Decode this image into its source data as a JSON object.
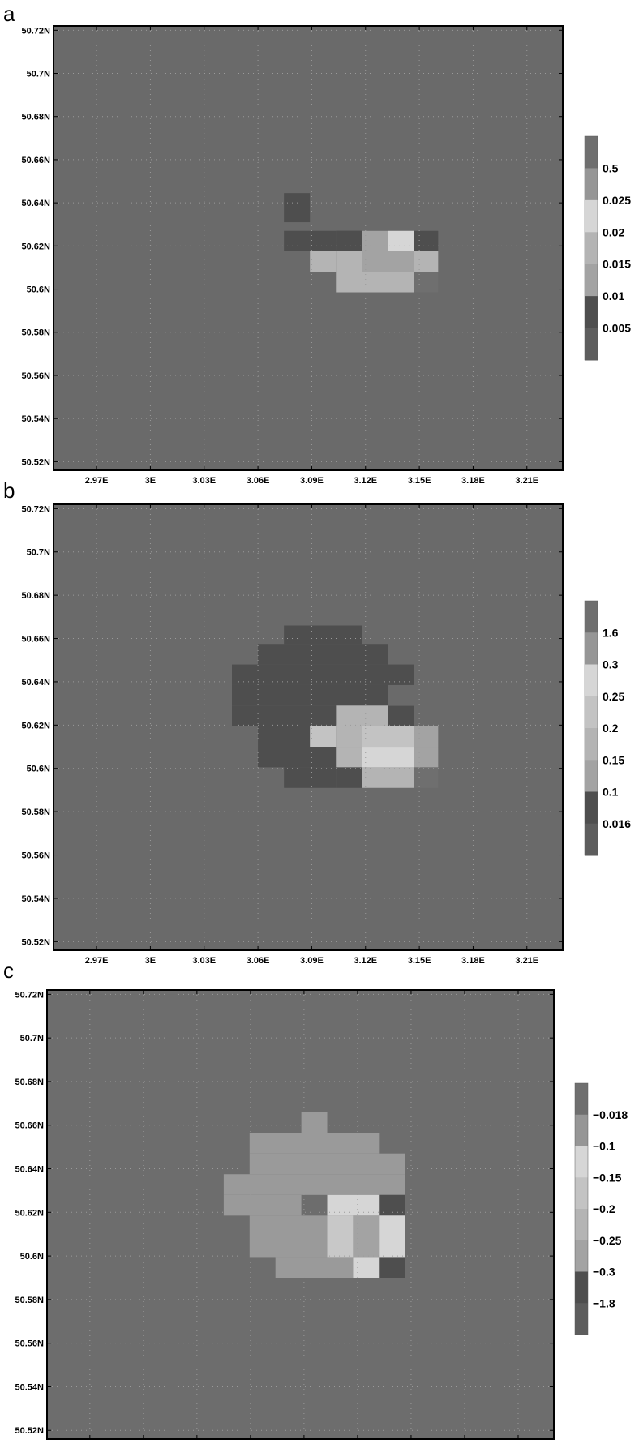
{
  "chart_data": [
    {
      "type": "heatmap",
      "panel_label": "a",
      "x_ticks": [
        "2.97E",
        "3E",
        "3.03E",
        "3.06E",
        "3.09E",
        "3.12E",
        "3.15E",
        "3.18E",
        "3.21E"
      ],
      "y_ticks": [
        "50.72N",
        "50.7N",
        "50.68N",
        "50.66N",
        "50.64N",
        "50.62N",
        "50.6N",
        "50.58N",
        "50.56N",
        "50.54N",
        "50.52N"
      ],
      "x_values": [
        2.97,
        3.0,
        3.03,
        3.06,
        3.09,
        3.12,
        3.15,
        3.18,
        3.21
      ],
      "y_values": [
        50.72,
        50.7,
        50.68,
        50.66,
        50.64,
        50.62,
        50.6,
        50.58,
        50.56,
        50.54,
        50.52
      ],
      "xlim": [
        2.946,
        3.23
      ],
      "ylim": [
        50.516,
        50.722
      ],
      "grid": true,
      "background_color": "#6a6a6a",
      "colorbar_labels": [
        "0.5",
        "0.025",
        "0.02",
        "0.015",
        "0.01",
        "0.005"
      ],
      "colorbar_colors": [
        "#6f6f6f",
        "#969696",
        "#d6d6d6",
        "#b4b4b4",
        "#a3a3a3",
        "#4e4e4e",
        "#5d5d5d"
      ],
      "cells": [
        {
          "x": 3.0745,
          "y": 50.631,
          "w": 0.0145,
          "h": 0.0135,
          "color": "#4e4e4e"
        },
        {
          "x": 3.0745,
          "y": 50.6175,
          "w": 0.0145,
          "h": 0.0095,
          "color": "#4e4e4e"
        },
        {
          "x": 3.089,
          "y": 50.6175,
          "w": 0.0145,
          "h": 0.0095,
          "color": "#4e4e4e"
        },
        {
          "x": 3.1035,
          "y": 50.6215,
          "w": 0.0435,
          "h": 0.0055,
          "color": "#4e4e4e"
        },
        {
          "x": 3.1035,
          "y": 50.6175,
          "w": 0.0145,
          "h": 0.004,
          "color": "#4e4e4e"
        },
        {
          "x": 3.118,
          "y": 50.6175,
          "w": 0.0145,
          "h": 0.004,
          "color": "#a3a3a3"
        },
        {
          "x": 3.1325,
          "y": 50.6175,
          "w": 0.0145,
          "h": 0.004,
          "color": "#d6d6d6"
        },
        {
          "x": 3.1035,
          "y": 50.6175,
          "w": 0.0145,
          "h": 0.0095,
          "color": "#4e4e4e"
        },
        {
          "x": 3.118,
          "y": 50.6175,
          "w": 0.0145,
          "h": 0.0095,
          "color": "#a3a3a3"
        },
        {
          "x": 3.1325,
          "y": 50.6175,
          "w": 0.0145,
          "h": 0.0095,
          "color": "#d6d6d6"
        },
        {
          "x": 3.147,
          "y": 50.6175,
          "w": 0.0135,
          "h": 0.0095,
          "color": "#4e4e4e"
        },
        {
          "x": 3.089,
          "y": 50.608,
          "w": 0.0145,
          "h": 0.0095,
          "color": "#b4b4b4"
        },
        {
          "x": 3.1035,
          "y": 50.608,
          "w": 0.0145,
          "h": 0.0095,
          "color": "#b4b4b4"
        },
        {
          "x": 3.118,
          "y": 50.608,
          "w": 0.029,
          "h": 0.0095,
          "color": "#a3a3a3"
        },
        {
          "x": 3.147,
          "y": 50.608,
          "w": 0.0135,
          "h": 0.0095,
          "color": "#b4b4b4"
        },
        {
          "x": 3.1035,
          "y": 50.5985,
          "w": 0.0435,
          "h": 0.0095,
          "color": "#b4b4b4"
        },
        {
          "x": 3.147,
          "y": 50.5985,
          "w": 0.0135,
          "h": 0.0095,
          "color": "#6f6f6f"
        }
      ]
    },
    {
      "type": "heatmap",
      "panel_label": "b",
      "x_ticks": [
        "2.97E",
        "3E",
        "3.03E",
        "3.06E",
        "3.09E",
        "3.12E",
        "3.15E",
        "3.18E",
        "3.21E"
      ],
      "y_ticks": [
        "50.72N",
        "50.7N",
        "50.68N",
        "50.66N",
        "50.64N",
        "50.62N",
        "50.6N",
        "50.58N",
        "50.56N",
        "50.54N",
        "50.52N"
      ],
      "x_values": [
        2.97,
        3.0,
        3.03,
        3.06,
        3.09,
        3.12,
        3.15,
        3.18,
        3.21
      ],
      "y_values": [
        50.72,
        50.7,
        50.68,
        50.66,
        50.64,
        50.62,
        50.6,
        50.58,
        50.56,
        50.54,
        50.52
      ],
      "xlim": [
        2.946,
        3.23
      ],
      "ylim": [
        50.516,
        50.722
      ],
      "grid": true,
      "background_color": "#6a6a6a",
      "colorbar_labels": [
        "1.6",
        "0.3",
        "0.25",
        "0.2",
        "0.15",
        "0.1",
        "0.016"
      ],
      "colorbar_colors": [
        "#6f6f6f",
        "#969696",
        "#d6d6d6",
        "#c3c3c3",
        "#b4b4b4",
        "#a3a3a3",
        "#4e4e4e",
        "#5d5d5d"
      ],
      "cells": [
        {
          "x": 3.0745,
          "y": 50.6575,
          "w": 0.0435,
          "h": 0.0085,
          "color": "#4e4e4e"
        },
        {
          "x": 3.06,
          "y": 50.648,
          "w": 0.0725,
          "h": 0.0095,
          "color": "#4e4e4e"
        },
        {
          "x": 3.0455,
          "y": 50.6385,
          "w": 0.1015,
          "h": 0.0095,
          "color": "#4e4e4e"
        },
        {
          "x": 3.0455,
          "y": 50.629,
          "w": 0.0435,
          "h": 0.0095,
          "color": "#4e4e4e"
        },
        {
          "x": 3.089,
          "y": 50.629,
          "w": 0.0435,
          "h": 0.0095,
          "color": "#4e4e4e"
        },
        {
          "x": 3.1035,
          "y": 50.6195,
          "w": 0.0435,
          "h": 0.0095,
          "color": "#b4b4b4"
        },
        {
          "x": 3.1325,
          "y": 50.6195,
          "w": 0.0145,
          "h": 0.0095,
          "color": "#4e4e4e"
        },
        {
          "x": 3.0455,
          "y": 50.6195,
          "w": 0.058,
          "h": 0.0095,
          "color": "#4e4e4e"
        },
        {
          "x": 3.06,
          "y": 50.61,
          "w": 0.029,
          "h": 0.0095,
          "color": "#4e4e4e"
        },
        {
          "x": 3.089,
          "y": 50.61,
          "w": 0.0145,
          "h": 0.0095,
          "color": "#c3c3c3"
        },
        {
          "x": 3.1035,
          "y": 50.61,
          "w": 0.0145,
          "h": 0.0095,
          "color": "#b4b4b4"
        },
        {
          "x": 3.118,
          "y": 50.61,
          "w": 0.029,
          "h": 0.0095,
          "color": "#c3c3c3"
        },
        {
          "x": 3.147,
          "y": 50.61,
          "w": 0.0135,
          "h": 0.0095,
          "color": "#a3a3a3"
        },
        {
          "x": 3.06,
          "y": 50.6005,
          "w": 0.0435,
          "h": 0.0095,
          "color": "#4e4e4e"
        },
        {
          "x": 3.1035,
          "y": 50.6005,
          "w": 0.0145,
          "h": 0.0095,
          "color": "#b4b4b4"
        },
        {
          "x": 3.118,
          "y": 50.6005,
          "w": 0.029,
          "h": 0.0095,
          "color": "#d6d6d6"
        },
        {
          "x": 3.147,
          "y": 50.6005,
          "w": 0.0135,
          "h": 0.0095,
          "color": "#a3a3a3"
        },
        {
          "x": 3.0745,
          "y": 50.591,
          "w": 0.029,
          "h": 0.0095,
          "color": "#4e4e4e"
        },
        {
          "x": 3.1035,
          "y": 50.591,
          "w": 0.0145,
          "h": 0.0095,
          "color": "#4e4e4e"
        },
        {
          "x": 3.118,
          "y": 50.591,
          "w": 0.029,
          "h": 0.0095,
          "color": "#b4b4b4"
        },
        {
          "x": 3.147,
          "y": 50.591,
          "w": 0.0135,
          "h": 0.0095,
          "color": "#6f6f6f"
        }
      ]
    },
    {
      "type": "heatmap",
      "panel_label": "c",
      "x_ticks": [
        "2.97E",
        "3E",
        "3.03E",
        "3.06E",
        "3.09E",
        "3.12E",
        "3.15E",
        "3.18E",
        "3.21E"
      ],
      "y_ticks": [
        "50.72N",
        "50.7N",
        "50.68N",
        "50.66N",
        "50.64N",
        "50.62N",
        "50.6N",
        "50.58N",
        "50.56N",
        "50.54N",
        "50.52N"
      ],
      "x_values": [
        2.97,
        3.0,
        3.03,
        3.06,
        3.09,
        3.12,
        3.15,
        3.18,
        3.21
      ],
      "y_values": [
        50.72,
        50.7,
        50.68,
        50.66,
        50.64,
        50.62,
        50.6,
        50.58,
        50.56,
        50.54,
        50.52
      ],
      "xlim": [
        2.946,
        3.23
      ],
      "ylim": [
        50.516,
        50.722
      ],
      "grid": true,
      "background_color": "#6d6d6d",
      "colorbar_labels": [
        "−0.018",
        "−0.1",
        "−0.15",
        "−0.2",
        "−0.25",
        "−0.3",
        "−1.8"
      ],
      "colorbar_colors": [
        "#6f6f6f",
        "#969696",
        "#d6d6d6",
        "#c3c3c3",
        "#b4b4b4",
        "#a3a3a3",
        "#4e4e4e",
        "#5d5d5d"
      ],
      "cells": [
        {
          "x": 3.0885,
          "y": 50.6565,
          "w": 0.0145,
          "h": 0.0095,
          "color": "#9a9a9a"
        },
        {
          "x": 3.0595,
          "y": 50.647,
          "w": 0.0725,
          "h": 0.0095,
          "color": "#9a9a9a"
        },
        {
          "x": 3.0595,
          "y": 50.6375,
          "w": 0.087,
          "h": 0.0095,
          "color": "#9a9a9a"
        },
        {
          "x": 3.045,
          "y": 50.628,
          "w": 0.1015,
          "h": 0.0095,
          "color": "#9a9a9a"
        },
        {
          "x": 3.045,
          "y": 50.6185,
          "w": 0.0435,
          "h": 0.0095,
          "color": "#9a9a9a"
        },
        {
          "x": 3.103,
          "y": 50.6185,
          "w": 0.029,
          "h": 0.0095,
          "color": "#d6d6d6"
        },
        {
          "x": 3.132,
          "y": 50.6185,
          "w": 0.0145,
          "h": 0.0095,
          "color": "#4e4e4e"
        },
        {
          "x": 3.0595,
          "y": 50.609,
          "w": 0.0435,
          "h": 0.0095,
          "color": "#9a9a9a"
        },
        {
          "x": 3.103,
          "y": 50.609,
          "w": 0.0145,
          "h": 0.0095,
          "color": "#c8c8c8"
        },
        {
          "x": 3.1175,
          "y": 50.609,
          "w": 0.029,
          "h": 0.0095,
          "color": "#a3a3a3"
        },
        {
          "x": 3.132,
          "y": 50.609,
          "w": 0.0145,
          "h": 0.0095,
          "color": "#d6d6d6"
        },
        {
          "x": 3.0595,
          "y": 50.5995,
          "w": 0.0435,
          "h": 0.0095,
          "color": "#9a9a9a"
        },
        {
          "x": 3.103,
          "y": 50.5995,
          "w": 0.0145,
          "h": 0.0095,
          "color": "#c8c8c8"
        },
        {
          "x": 3.1175,
          "y": 50.5995,
          "w": 0.029,
          "h": 0.0095,
          "color": "#a3a3a3"
        },
        {
          "x": 3.132,
          "y": 50.5995,
          "w": 0.0145,
          "h": 0.0095,
          "color": "#d6d6d6"
        },
        {
          "x": 3.074,
          "y": 50.59,
          "w": 0.029,
          "h": 0.0095,
          "color": "#9a9a9a"
        },
        {
          "x": 3.103,
          "y": 50.59,
          "w": 0.0145,
          "h": 0.0095,
          "color": "#9a9a9a"
        },
        {
          "x": 3.1175,
          "y": 50.59,
          "w": 0.0145,
          "h": 0.0095,
          "color": "#d6d6d6"
        },
        {
          "x": 3.132,
          "y": 50.59,
          "w": 0.0145,
          "h": 0.0095,
          "color": "#4e4e4e"
        }
      ]
    }
  ]
}
